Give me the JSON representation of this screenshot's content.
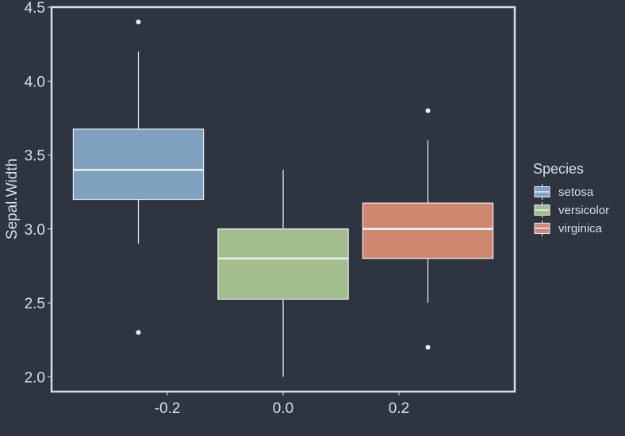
{
  "chart_data": {
    "type": "boxplot",
    "title": "",
    "xlabel": "",
    "ylabel": "Sepal.Width",
    "x_ticks": [
      -0.2,
      0.0,
      0.2
    ],
    "x_tick_labels": [
      "-0.2",
      "0.0",
      "0.2"
    ],
    "xlim": [
      -0.4,
      0.4
    ],
    "ylim": [
      1.9,
      4.5
    ],
    "y_ticks": [
      2.0,
      2.5,
      3.0,
      3.5,
      4.0,
      4.5
    ],
    "y_tick_labels": [
      "2.0",
      "2.5",
      "3.0",
      "3.5",
      "4.0",
      "4.5"
    ],
    "grid": false,
    "legend": {
      "title": "Species",
      "placement": "right",
      "entries": [
        "setosa",
        "versicolor",
        "virginica"
      ]
    },
    "series": [
      {
        "name": "setosa",
        "color": "#81a1c1",
        "x": -0.25,
        "box_width": 0.225,
        "whisker_low": 2.9,
        "q1": 3.2,
        "median": 3.4,
        "q3": 3.675,
        "whisker_high": 4.2,
        "outliers": [
          4.4,
          2.3
        ]
      },
      {
        "name": "versicolor",
        "color": "#a3be8c",
        "x": 0.0,
        "box_width": 0.225,
        "whisker_low": 2.0,
        "q1": 2.525,
        "median": 2.8,
        "q3": 3.0,
        "whisker_high": 3.4,
        "outliers": []
      },
      {
        "name": "virginica",
        "color": "#d08770",
        "x": 0.25,
        "box_width": 0.225,
        "whisker_low": 2.5,
        "q1": 2.8,
        "median": 3.0,
        "q3": 3.175,
        "whisker_high": 3.6,
        "outliers": [
          3.8,
          2.2
        ]
      }
    ]
  },
  "colors": {
    "background": "#2e3440",
    "foreground": "#d8dee9",
    "box_outline": "#eceff4"
  }
}
